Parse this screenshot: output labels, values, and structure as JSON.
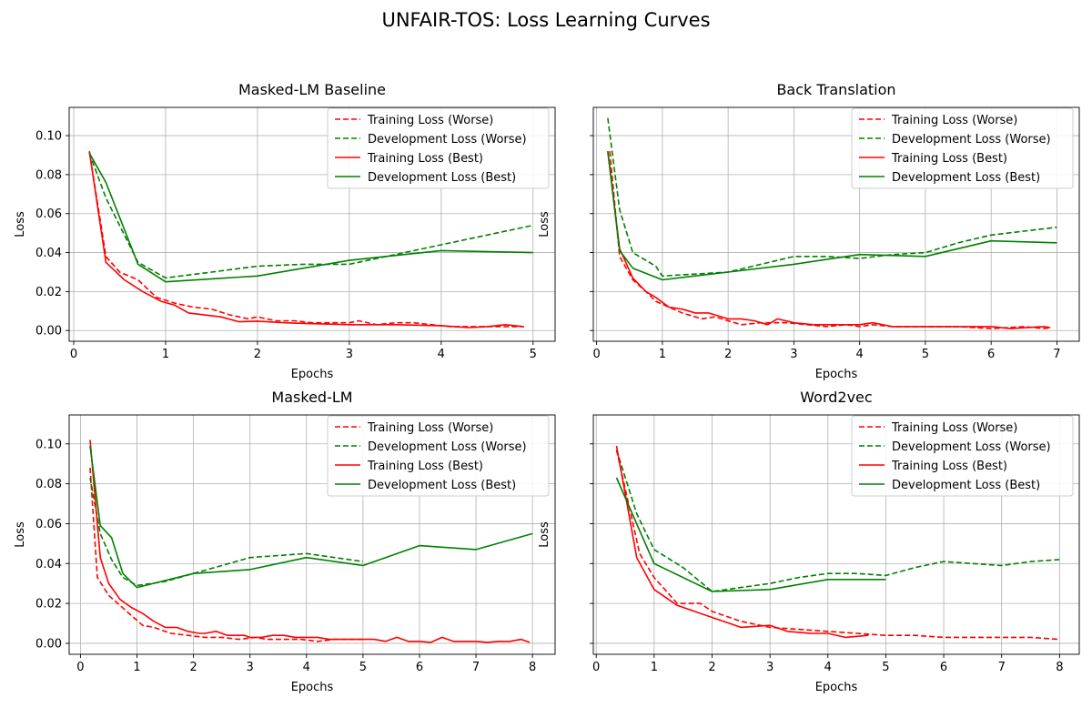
{
  "figure": {
    "title": "UNFAIR-TOS: Loss Learning Curves"
  },
  "colors": {
    "training": "#ff0000",
    "development": "#008000",
    "grid": "#b0b0b0"
  },
  "chart_data": [
    {
      "type": "line",
      "title": "Masked-LM Baseline",
      "xlabel": "Epochs",
      "ylabel": "Loss",
      "xlim": [
        -0.05,
        5.24
      ],
      "ylim": [
        -0.0055,
        0.1145
      ],
      "xticks": [
        0,
        1,
        2,
        3,
        4,
        5
      ],
      "yticks": [
        0.0,
        0.02,
        0.04,
        0.06,
        0.08,
        0.1
      ],
      "ytick_labels": [
        "0.00",
        "0.02",
        "0.04",
        "0.06",
        "0.08",
        "0.10"
      ],
      "grid": true,
      "legend": "top-right",
      "series": [
        {
          "name": "Training Loss (Worse)",
          "color": "red",
          "style": "dashed",
          "x": [
            0.17,
            0.35,
            0.5,
            0.7,
            0.9,
            1.1,
            1.3,
            1.5,
            1.7,
            1.9,
            2.0,
            2.2,
            2.4,
            2.6,
            2.8,
            3.0,
            3.1,
            3.3,
            3.5,
            3.7,
            3.9,
            4.1,
            4.3,
            4.5,
            4.7,
            4.9
          ],
          "y": [
            0.092,
            0.038,
            0.03,
            0.026,
            0.017,
            0.014,
            0.012,
            0.011,
            0.008,
            0.006,
            0.007,
            0.005,
            0.005,
            0.004,
            0.004,
            0.004,
            0.005,
            0.003,
            0.004,
            0.004,
            0.003,
            0.002,
            0.002,
            0.002,
            0.002,
            0.002
          ]
        },
        {
          "name": "Development Loss (Worse)",
          "color": "green",
          "style": "dashed",
          "x": [
            0.17,
            0.35,
            0.7,
            1.0,
            1.5,
            2.0,
            2.5,
            3.0,
            3.5,
            4.0,
            4.5,
            5.0
          ],
          "y": [
            0.091,
            0.068,
            0.035,
            0.027,
            0.03,
            0.033,
            0.034,
            0.034,
            0.039,
            0.044,
            0.049,
            0.054
          ]
        },
        {
          "name": "Training Loss (Best)",
          "color": "red",
          "style": "solid",
          "x": [
            0.17,
            0.35,
            0.55,
            0.75,
            0.95,
            1.1,
            1.25,
            1.6,
            1.8,
            2.0,
            2.3,
            2.6,
            3.0,
            3.5,
            4.0,
            4.3,
            4.5,
            4.7,
            4.9
          ],
          "y": [
            0.092,
            0.035,
            0.026,
            0.02,
            0.015,
            0.013,
            0.009,
            0.007,
            0.0045,
            0.0048,
            0.004,
            0.0035,
            0.003,
            0.003,
            0.0025,
            0.0015,
            0.002,
            0.003,
            0.002
          ]
        },
        {
          "name": "Development Loss (Best)",
          "color": "green",
          "style": "solid",
          "x": [
            0.17,
            0.35,
            0.7,
            1.0,
            2.0,
            3.0,
            4.0,
            5.0
          ],
          "y": [
            0.091,
            0.076,
            0.034,
            0.025,
            0.028,
            0.036,
            0.041,
            0.04
          ]
        }
      ]
    },
    {
      "type": "line",
      "title": "Back Translation",
      "xlabel": "Epochs",
      "ylabel": "Loss",
      "xlim": [
        -0.05,
        7.34
      ],
      "ylim": [
        -0.0055,
        0.1145
      ],
      "xticks": [
        0,
        1,
        2,
        3,
        4,
        5,
        6,
        7
      ],
      "yticks": [
        0.0,
        0.02,
        0.04,
        0.06,
        0.08,
        0.1
      ],
      "grid": true,
      "legend": "top-right",
      "series": [
        {
          "name": "Training Loss (Worse)",
          "color": "red",
          "style": "dashed",
          "x": [
            0.2,
            0.35,
            0.55,
            0.75,
            0.9,
            1.1,
            1.3,
            1.6,
            1.8,
            2.0,
            2.2,
            2.5,
            2.7,
            2.9,
            3.2,
            3.5,
            3.8,
            4.0,
            4.2,
            4.5,
            4.8,
            5.0,
            5.5,
            6.0,
            6.5,
            6.8,
            6.9
          ],
          "y": [
            0.092,
            0.038,
            0.026,
            0.02,
            0.015,
            0.012,
            0.009,
            0.006,
            0.007,
            0.005,
            0.003,
            0.004,
            0.004,
            0.004,
            0.003,
            0.002,
            0.003,
            0.002,
            0.003,
            0.002,
            0.002,
            0.002,
            0.002,
            0.001,
            0.002,
            0.001,
            0.0015
          ]
        },
        {
          "name": "Development Loss (Worse)",
          "color": "green",
          "style": "dashed",
          "x": [
            0.17,
            0.35,
            0.55,
            0.9,
            1.0,
            2.0,
            2.5,
            3.0,
            3.5,
            4.0,
            4.5,
            5.0,
            5.5,
            6.0,
            6.5,
            7.0
          ],
          "y": [
            0.109,
            0.062,
            0.04,
            0.033,
            0.028,
            0.03,
            0.034,
            0.038,
            0.038,
            0.037,
            0.039,
            0.04,
            0.045,
            0.049,
            0.051,
            0.053
          ]
        },
        {
          "name": "Training Loss (Best)",
          "color": "red",
          "style": "solid",
          "x": [
            0.17,
            0.35,
            0.55,
            0.75,
            0.9,
            1.1,
            1.3,
            1.5,
            1.7,
            2.0,
            2.2,
            2.4,
            2.6,
            2.75,
            3.0,
            3.3,
            3.6,
            4.0,
            4.2,
            4.5,
            5.0,
            5.5,
            6.0,
            6.3,
            6.8,
            6.9
          ],
          "y": [
            0.092,
            0.042,
            0.027,
            0.02,
            0.017,
            0.012,
            0.011,
            0.009,
            0.009,
            0.006,
            0.006,
            0.005,
            0.003,
            0.006,
            0.004,
            0.003,
            0.003,
            0.003,
            0.004,
            0.002,
            0.002,
            0.002,
            0.002,
            0.001,
            0.002,
            0.0015
          ]
        },
        {
          "name": "Development Loss (Best)",
          "color": "green",
          "style": "solid",
          "x": [
            0.17,
            0.35,
            0.55,
            1.0,
            2.0,
            3.0,
            4.0,
            5.0,
            6.0,
            7.0
          ],
          "y": [
            0.092,
            0.041,
            0.032,
            0.026,
            0.03,
            0.034,
            0.039,
            0.038,
            0.046,
            0.045
          ]
        }
      ]
    },
    {
      "type": "line",
      "title": "Masked-LM",
      "xlabel": "Epochs",
      "ylabel": "Loss",
      "xlim": [
        -0.2,
        8.4
      ],
      "ylim": [
        -0.0055,
        0.1145
      ],
      "xticks": [
        0,
        1,
        2,
        3,
        4,
        5,
        6,
        7,
        8
      ],
      "yticks": [
        0.0,
        0.02,
        0.04,
        0.06,
        0.08,
        0.1
      ],
      "ytick_labels": [
        "0.00",
        "0.02",
        "0.04",
        "0.06",
        "0.08",
        "0.10"
      ],
      "grid": true,
      "legend": "top-right",
      "series": [
        {
          "name": "Training Loss (Worse)",
          "color": "red",
          "style": "dashed",
          "x": [
            0.17,
            0.3,
            0.5,
            0.7,
            0.9,
            1.1,
            1.3,
            1.6,
            1.9,
            2.2,
            2.5,
            2.8,
            3.1,
            3.3,
            3.6,
            3.9,
            4.2,
            4.5,
            4.8,
            5.0
          ],
          "y": [
            0.088,
            0.033,
            0.024,
            0.019,
            0.014,
            0.009,
            0.008,
            0.005,
            0.004,
            0.003,
            0.003,
            0.002,
            0.003,
            0.002,
            0.002,
            0.002,
            0.001,
            0.002,
            0.002,
            0.002
          ]
        },
        {
          "name": "Development Loss (Worse)",
          "color": "green",
          "style": "dashed",
          "x": [
            0.17,
            0.35,
            0.55,
            0.75,
            1.0,
            1.5,
            2.0,
            2.5,
            3.0,
            3.5,
            4.0,
            4.5,
            5.0
          ],
          "y": [
            0.083,
            0.055,
            0.042,
            0.033,
            0.029,
            0.031,
            0.035,
            0.039,
            0.043,
            0.044,
            0.045,
            0.043,
            0.041
          ]
        },
        {
          "name": "Training Loss (Best)",
          "color": "red",
          "style": "solid",
          "x": [
            0.17,
            0.35,
            0.5,
            0.7,
            0.9,
            1.1,
            1.3,
            1.5,
            1.7,
            1.9,
            2.1,
            2.2,
            2.4,
            2.6,
            2.9,
            3.0,
            3.2,
            3.4,
            3.6,
            3.8,
            4.0,
            4.2,
            4.4,
            4.6,
            4.8,
            5.0,
            5.2,
            5.4,
            5.6,
            5.8,
            6.0,
            6.2,
            6.4,
            6.6,
            6.8,
            7.0,
            7.2,
            7.4,
            7.6,
            7.8,
            7.95
          ],
          "y": [
            0.102,
            0.043,
            0.03,
            0.022,
            0.018,
            0.015,
            0.011,
            0.008,
            0.008,
            0.006,
            0.005,
            0.005,
            0.006,
            0.004,
            0.004,
            0.003,
            0.003,
            0.004,
            0.004,
            0.003,
            0.003,
            0.003,
            0.002,
            0.002,
            0.002,
            0.002,
            0.002,
            0.001,
            0.003,
            0.001,
            0.001,
            0.0005,
            0.003,
            0.001,
            0.001,
            0.001,
            0.0005,
            0.001,
            0.001,
            0.002,
            0.0005
          ]
        },
        {
          "name": "Development Loss (Best)",
          "color": "green",
          "style": "solid",
          "x": [
            0.17,
            0.35,
            0.55,
            0.75,
            1.0,
            2.0,
            3.0,
            4.0,
            5.0,
            6.0,
            7.0,
            8.0
          ],
          "y": [
            0.099,
            0.059,
            0.053,
            0.035,
            0.028,
            0.035,
            0.037,
            0.043,
            0.039,
            0.049,
            0.047,
            0.055
          ]
        }
      ]
    },
    {
      "type": "line",
      "title": "Word2vec",
      "xlabel": "Epochs",
      "ylabel": "Loss",
      "xlim": [
        -0.05,
        8.34
      ],
      "ylim": [
        -0.0055,
        0.1145
      ],
      "xticks": [
        0,
        1,
        2,
        3,
        4,
        5,
        6,
        7,
        8
      ],
      "yticks": [
        0.0,
        0.02,
        0.04,
        0.06,
        0.08,
        0.1
      ],
      "grid": true,
      "legend": "top-right",
      "series": [
        {
          "name": "Training Loss (Worse)",
          "color": "red",
          "style": "dashed",
          "x": [
            0.35,
            0.75,
            1.0,
            1.4,
            1.8,
            2.0,
            2.5,
            3.0,
            3.5,
            4.0,
            4.5,
            5.0,
            5.5,
            6.0,
            6.5,
            7.0,
            7.5,
            8.0
          ],
          "y": [
            0.097,
            0.045,
            0.033,
            0.02,
            0.02,
            0.016,
            0.011,
            0.008,
            0.007,
            0.006,
            0.005,
            0.004,
            0.004,
            0.003,
            0.003,
            0.003,
            0.003,
            0.002
          ]
        },
        {
          "name": "Development Loss (Worse)",
          "color": "green",
          "style": "dashed",
          "x": [
            0.35,
            0.7,
            1.0,
            1.5,
            2.0,
            2.5,
            3.0,
            3.5,
            4.0,
            4.5,
            5.0,
            5.5,
            6.0,
            6.5,
            7.0,
            7.5,
            8.0
          ],
          "y": [
            0.097,
            0.065,
            0.047,
            0.038,
            0.026,
            0.028,
            0.03,
            0.033,
            0.035,
            0.035,
            0.034,
            0.038,
            0.041,
            0.04,
            0.039,
            0.041,
            0.042
          ]
        },
        {
          "name": "Training Loss (Best)",
          "color": "red",
          "style": "solid",
          "x": [
            0.35,
            0.7,
            1.0,
            1.4,
            2.0,
            2.5,
            3.0,
            3.3,
            3.7,
            4.0,
            4.3,
            4.7
          ],
          "y": [
            0.099,
            0.043,
            0.027,
            0.019,
            0.013,
            0.008,
            0.009,
            0.006,
            0.005,
            0.005,
            0.003,
            0.004
          ]
        },
        {
          "name": "Development Loss (Best)",
          "color": "green",
          "style": "solid",
          "x": [
            0.35,
            1.0,
            2.0,
            3.0,
            4.0,
            5.0
          ],
          "y": [
            0.083,
            0.04,
            0.026,
            0.027,
            0.032,
            0.032
          ]
        }
      ]
    }
  ]
}
